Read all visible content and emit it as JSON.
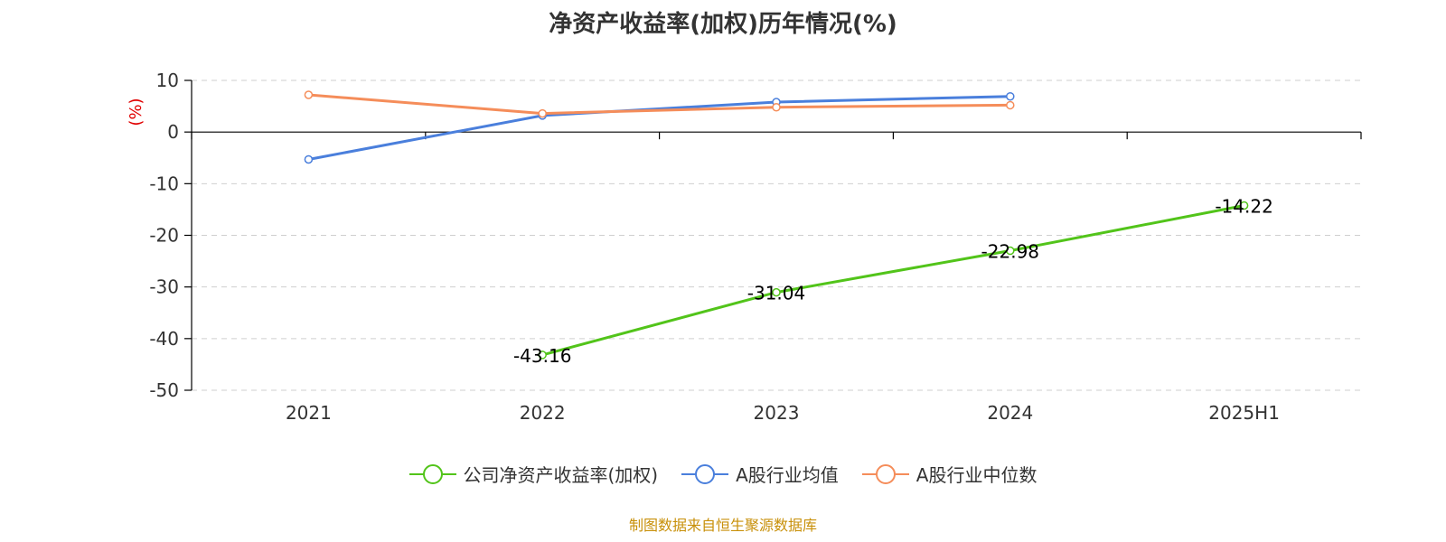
{
  "title": "净资产收益率(加权)历年情况(%)",
  "source": "制图数据来自恒生聚源数据库",
  "chart_data": {
    "type": "line",
    "categories": [
      "2021",
      "2022",
      "2023",
      "2024",
      "2025H1"
    ],
    "ylabel": "(%)",
    "ylim": [
      -50,
      10
    ],
    "yticks": [
      10,
      0,
      -10,
      -20,
      -30,
      -40,
      -50
    ],
    "grid": true,
    "legend_position": "bottom",
    "series": [
      {
        "name": "公司净资产收益率(加权)",
        "color": "#52c41a",
        "values": [
          null,
          -43.16,
          -31.04,
          -22.98,
          -14.22
        ],
        "labels": [
          null,
          "-43.16",
          "-31.04",
          "-22.98",
          "-14.22"
        ]
      },
      {
        "name": "A股行业均值",
        "color": "#4a7fdc",
        "values": [
          -5.3,
          3.2,
          5.8,
          6.9,
          null
        ],
        "labels": [
          null,
          null,
          null,
          null,
          null
        ]
      },
      {
        "name": "A股行业中位数",
        "color": "#f58d5a",
        "values": [
          7.2,
          3.6,
          4.8,
          5.2,
          null
        ],
        "labels": [
          null,
          null,
          null,
          null,
          null
        ]
      }
    ]
  }
}
